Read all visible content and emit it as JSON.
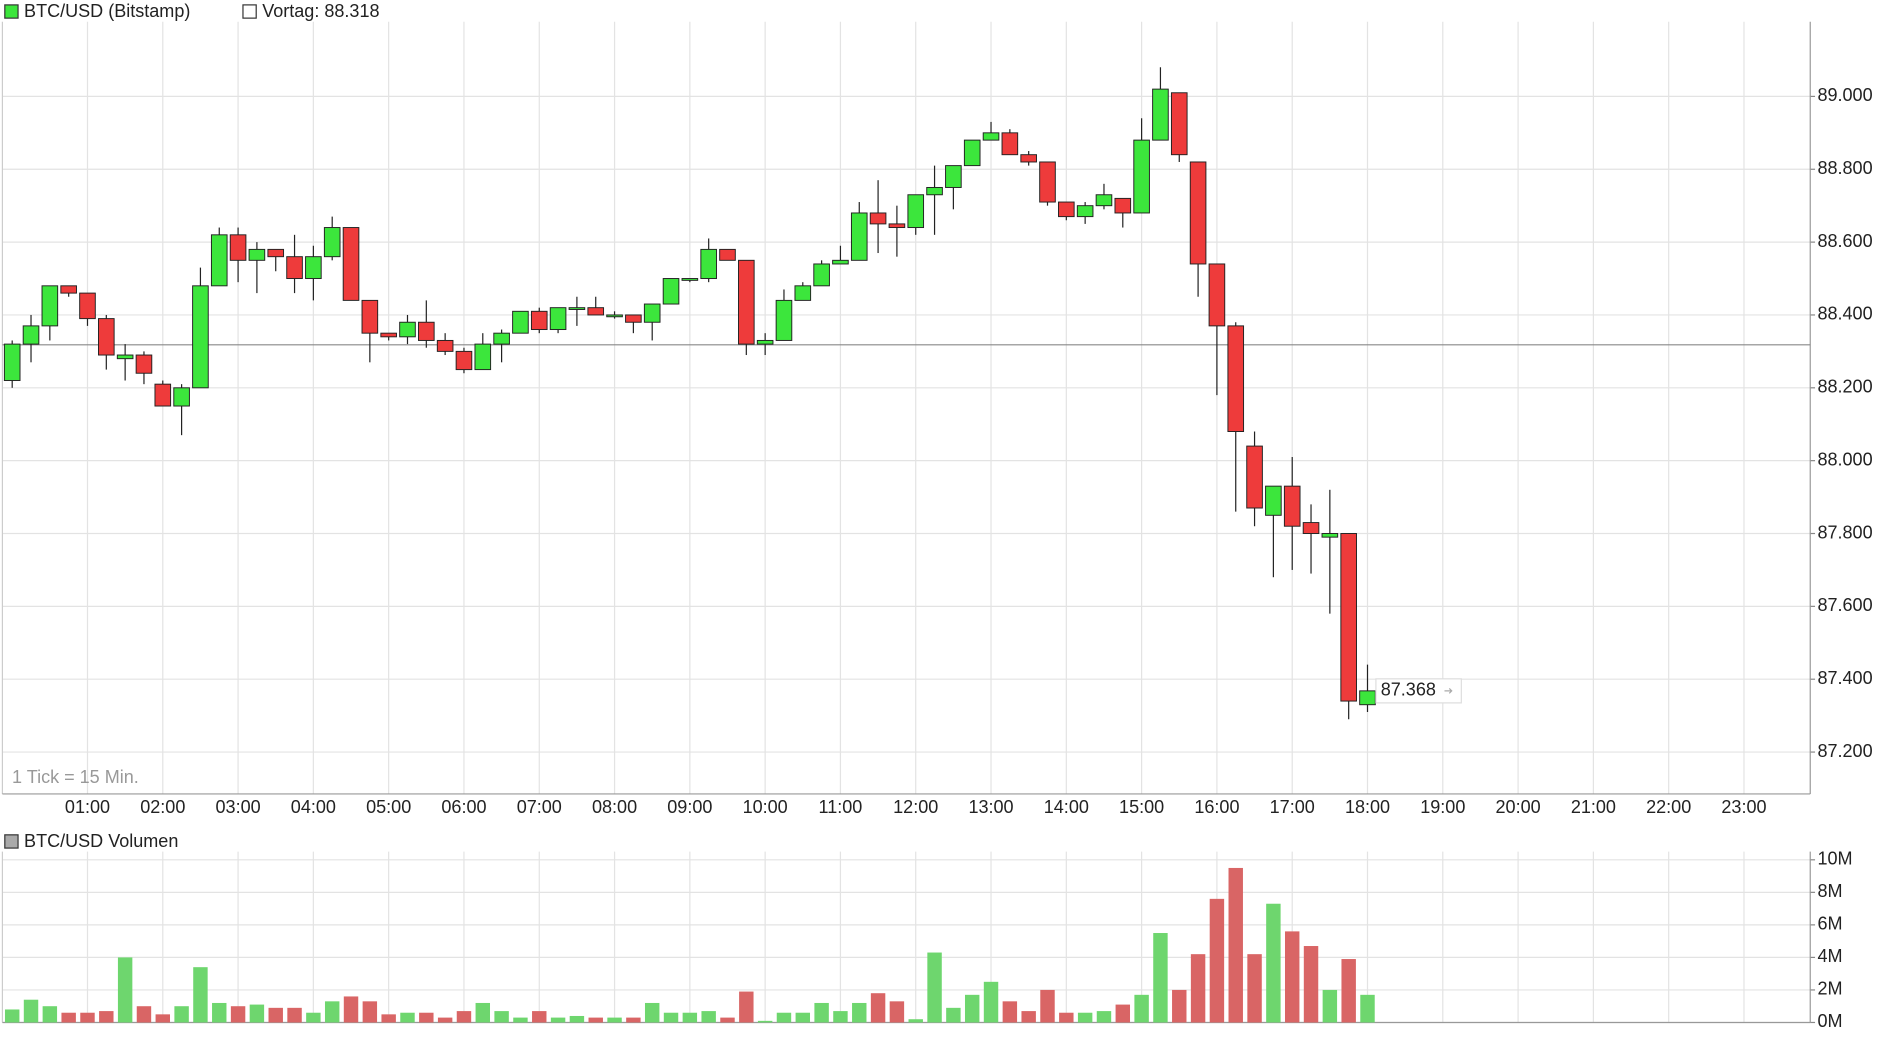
{
  "chart_data": [
    {
      "type": "candlestick",
      "title": "BTC/USD (Bitstamp)",
      "annotation": "1 Tick = 15 Min.",
      "up_color": "#3ce63c",
      "down_color": "#ee3b3b",
      "reference_line": {
        "label": "Vortag: 88.318",
        "value": 88.318,
        "color": "#888888"
      },
      "last_value_label": "87.368",
      "x": [
        0,
        0.25,
        0.5,
        0.75,
        1,
        1.25,
        1.5,
        1.75,
        2,
        2.25,
        2.5,
        2.75,
        3,
        3.25,
        3.5,
        3.75,
        4,
        4.25,
        4.5,
        4.75,
        5,
        5.25,
        5.5,
        5.75,
        6,
        6.25,
        6.5,
        6.75,
        7,
        7.25,
        7.5,
        7.75,
        8,
        8.25,
        8.5,
        8.75,
        9,
        9.25,
        9.5,
        9.75,
        10,
        10.25,
        10.5,
        10.75,
        11,
        11.25,
        11.5,
        11.75,
        12,
        12.25,
        12.5,
        12.75,
        13,
        13.25,
        13.5,
        13.75,
        14,
        14.25,
        14.5,
        14.75,
        15,
        15.25,
        15.5,
        15.75,
        16,
        16.25,
        16.5,
        16.75,
        17,
        17.25,
        17.5,
        17.75,
        18
      ],
      "open": [
        88.22,
        88.32,
        88.37,
        88.48,
        88.46,
        88.39,
        88.28,
        88.29,
        88.21,
        88.15,
        88.2,
        88.48,
        88.62,
        88.55,
        88.58,
        88.56,
        88.5,
        88.56,
        88.64,
        88.44,
        88.35,
        88.34,
        88.38,
        88.33,
        88.3,
        88.25,
        88.32,
        88.35,
        88.41,
        88.36,
        88.42,
        88.42,
        88.4,
        88.4,
        88.38,
        88.43,
        88.495,
        88.5,
        88.58,
        88.55,
        88.32,
        88.33,
        88.44,
        88.48,
        88.54,
        88.55,
        88.68,
        88.65,
        88.64,
        88.73,
        88.75,
        88.81,
        88.88,
        88.9,
        88.84,
        88.82,
        88.71,
        88.67,
        88.7,
        88.72,
        88.68,
        88.88,
        89.01,
        88.82,
        88.54,
        88.37,
        88.04,
        87.85,
        87.93,
        87.83,
        87.79,
        87.8,
        87.33
      ],
      "high": [
        88.33,
        88.4,
        88.48,
        88.48,
        88.46,
        88.4,
        88.32,
        88.3,
        88.22,
        88.21,
        88.53,
        88.64,
        88.64,
        88.6,
        88.58,
        88.62,
        88.59,
        88.67,
        88.64,
        88.44,
        88.35,
        88.4,
        88.44,
        88.35,
        88.31,
        88.35,
        88.36,
        88.41,
        88.42,
        88.42,
        88.45,
        88.45,
        88.41,
        88.4,
        88.43,
        88.5,
        88.5,
        88.61,
        88.58,
        88.55,
        88.35,
        88.47,
        88.49,
        88.55,
        88.59,
        88.71,
        88.77,
        88.7,
        88.73,
        88.81,
        88.81,
        88.88,
        88.93,
        88.91,
        88.85,
        88.82,
        88.71,
        88.71,
        88.76,
        88.72,
        88.94,
        89.08,
        89.01,
        88.82,
        88.54,
        88.38,
        88.08,
        87.93,
        88.01,
        87.88,
        87.92,
        87.8,
        87.44
      ],
      "low": [
        88.2,
        88.27,
        88.33,
        88.45,
        88.37,
        88.25,
        88.22,
        88.21,
        88.15,
        88.07,
        88.2,
        88.48,
        88.49,
        88.46,
        88.52,
        88.46,
        88.44,
        88.55,
        88.44,
        88.27,
        88.33,
        88.32,
        88.31,
        88.29,
        88.24,
        88.25,
        88.27,
        88.35,
        88.35,
        88.35,
        88.37,
        88.4,
        88.39,
        88.35,
        88.33,
        88.43,
        88.49,
        88.49,
        88.55,
        88.29,
        88.29,
        88.33,
        88.44,
        88.48,
        88.54,
        88.55,
        88.57,
        88.56,
        88.62,
        88.62,
        88.69,
        88.81,
        88.88,
        88.84,
        88.81,
        88.7,
        88.66,
        88.65,
        88.69,
        88.64,
        88.68,
        88.88,
        88.82,
        88.45,
        88.18,
        87.86,
        87.82,
        87.68,
        87.7,
        87.69,
        87.58,
        87.29,
        87.31
      ],
      "close": [
        88.32,
        88.37,
        88.48,
        88.46,
        88.39,
        88.29,
        88.29,
        88.24,
        88.15,
        88.2,
        88.48,
        88.62,
        88.55,
        88.58,
        88.56,
        88.5,
        88.56,
        88.64,
        88.44,
        88.35,
        88.34,
        88.38,
        88.33,
        88.3,
        88.25,
        88.32,
        88.35,
        88.41,
        88.36,
        88.42,
        88.42,
        88.4,
        88.4,
        88.38,
        88.43,
        88.5,
        88.5,
        88.58,
        88.55,
        88.32,
        88.33,
        88.44,
        88.48,
        88.54,
        88.55,
        88.68,
        88.65,
        88.64,
        88.73,
        88.75,
        88.81,
        88.88,
        88.9,
        88.84,
        88.82,
        88.71,
        88.67,
        88.7,
        88.73,
        88.68,
        88.88,
        89.02,
        88.84,
        88.54,
        88.37,
        88.08,
        87.87,
        87.93,
        87.82,
        87.8,
        87.8,
        87.34,
        87.368
      ],
      "xlim": [
        -0.13,
        23.88
      ],
      "xticks": [
        {
          "value": 1,
          "label": "01:00"
        },
        {
          "value": 2,
          "label": "02:00"
        },
        {
          "value": 3,
          "label": "03:00"
        },
        {
          "value": 4,
          "label": "04:00"
        },
        {
          "value": 5,
          "label": "05:00"
        },
        {
          "value": 6,
          "label": "06:00"
        },
        {
          "value": 7,
          "label": "07:00"
        },
        {
          "value": 8,
          "label": "08:00"
        },
        {
          "value": 9,
          "label": "09:00"
        },
        {
          "value": 10,
          "label": "10:00"
        },
        {
          "value": 11,
          "label": "11:00"
        },
        {
          "value": 12,
          "label": "12:00"
        },
        {
          "value": 13,
          "label": "13:00"
        },
        {
          "value": 14,
          "label": "14:00"
        },
        {
          "value": 15,
          "label": "15:00"
        },
        {
          "value": 16,
          "label": "16:00"
        },
        {
          "value": 17,
          "label": "17:00"
        },
        {
          "value": 18,
          "label": "18:00"
        },
        {
          "value": 19,
          "label": "19:00"
        },
        {
          "value": 20,
          "label": "20:00"
        },
        {
          "value": 21,
          "label": "21:00"
        },
        {
          "value": 22,
          "label": "22:00"
        },
        {
          "value": 23,
          "label": "23:00"
        }
      ],
      "ylim": [
        87.085,
        89.205
      ],
      "yticks": [
        {
          "value": 87.2,
          "label": "87.200"
        },
        {
          "value": 87.4,
          "label": "87.400"
        },
        {
          "value": 87.6,
          "label": "87.600"
        },
        {
          "value": 87.8,
          "label": "87.800"
        },
        {
          "value": 88,
          "label": "88.000"
        },
        {
          "value": 88.2,
          "label": "88.200"
        },
        {
          "value": 88.4,
          "label": "88.400"
        },
        {
          "value": 88.6,
          "label": "88.600"
        },
        {
          "value": 88.8,
          "label": "88.800"
        },
        {
          "value": 89,
          "label": "89.000"
        }
      ],
      "grid": true
    },
    {
      "type": "volume",
      "title": "BTC/USD Volumen",
      "color": "#aaaaaa",
      "up_color": "#6ed66e",
      "down_color": "#d96565",
      "values": [
        0.8,
        1.4,
        1.0,
        0.6,
        0.6,
        0.7,
        4.0,
        1.0,
        0.5,
        1.0,
        3.4,
        1.2,
        1.0,
        1.1,
        0.9,
        0.9,
        0.6,
        1.3,
        1.6,
        1.3,
        0.5,
        0.6,
        0.6,
        0.3,
        0.7,
        1.2,
        0.7,
        0.3,
        0.7,
        0.3,
        0.4,
        0.3,
        0.3,
        0.3,
        1.2,
        0.6,
        0.6,
        0.7,
        0.3,
        1.9,
        0.1,
        0.6,
        0.6,
        1.2,
        0.7,
        1.2,
        1.8,
        1.3,
        0.2,
        4.3,
        0.9,
        1.7,
        2.5,
        1.3,
        0.7,
        2.0,
        0.6,
        0.6,
        0.7,
        1.1,
        1.7,
        5.5,
        2.0,
        4.2,
        7.6,
        9.5,
        4.2,
        7.3,
        5.6,
        4.7,
        2.0,
        3.9,
        1.7
      ],
      "ylim": [
        0,
        10.5
      ],
      "yticks": [
        {
          "value": 0,
          "label": "0M"
        },
        {
          "value": 2,
          "label": "2M"
        },
        {
          "value": 4,
          "label": "4M"
        },
        {
          "value": 6,
          "label": "6M"
        },
        {
          "value": 8,
          "label": "8M"
        },
        {
          "value": 10,
          "label": "10M"
        }
      ],
      "grid": true
    }
  ]
}
